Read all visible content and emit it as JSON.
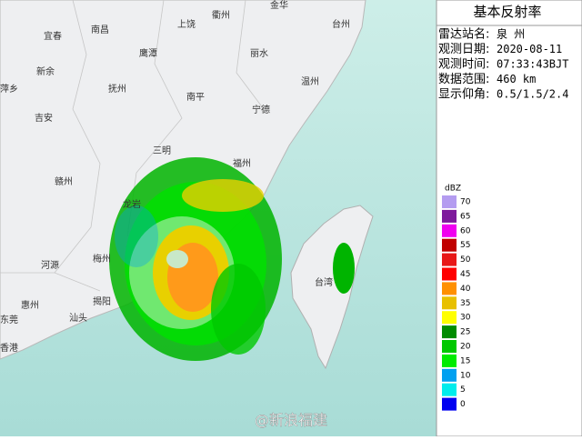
{
  "panel": {
    "title": "基本反射率",
    "rows": [
      {
        "label": "雷达站名:",
        "value": "泉 州"
      },
      {
        "label": "观测日期:",
        "value": "2020-08-11"
      },
      {
        "label": "观测时间:",
        "value": "07:33:43BJT"
      },
      {
        "label": "数据范围:",
        "value": "460 km"
      },
      {
        "label": "显示仰角:",
        "value": "0.5/1.5/2.4"
      }
    ]
  },
  "legend": {
    "title": "dBZ",
    "items": [
      {
        "value": 70,
        "color": "#b49cf0"
      },
      {
        "value": 65,
        "color": "#7e1a9c"
      },
      {
        "value": 60,
        "color": "#f000f0"
      },
      {
        "value": 55,
        "color": "#c00000"
      },
      {
        "value": 50,
        "color": "#e81818"
      },
      {
        "value": 45,
        "color": "#ff0000"
      },
      {
        "value": 40,
        "color": "#ff9000"
      },
      {
        "value": 35,
        "color": "#e8c000"
      },
      {
        "value": 30,
        "color": "#ffff00"
      },
      {
        "value": 25,
        "color": "#008c00"
      },
      {
        "value": 20,
        "color": "#00c800"
      },
      {
        "value": 15,
        "color": "#00ec00"
      },
      {
        "value": 10,
        "color": "#00a0f0"
      },
      {
        "value": 5,
        "color": "#00ecec"
      },
      {
        "value": 0,
        "color": "#0000f0"
      }
    ]
  },
  "map": {
    "cities": [
      "宜春",
      "南昌",
      "上饶",
      "衢州",
      "金华",
      "台州",
      "鹰潭",
      "丽水",
      "新余",
      "温州",
      "萍乡",
      "抚州",
      "南平",
      "宁德",
      "吉安",
      "三明",
      "福州",
      "赣州",
      "龙岩",
      "梅州",
      "河源",
      "揭阳",
      "汕头",
      "惠州",
      "东莞",
      "香港",
      "台湾"
    ]
  },
  "watermark": "@新浪福建"
}
